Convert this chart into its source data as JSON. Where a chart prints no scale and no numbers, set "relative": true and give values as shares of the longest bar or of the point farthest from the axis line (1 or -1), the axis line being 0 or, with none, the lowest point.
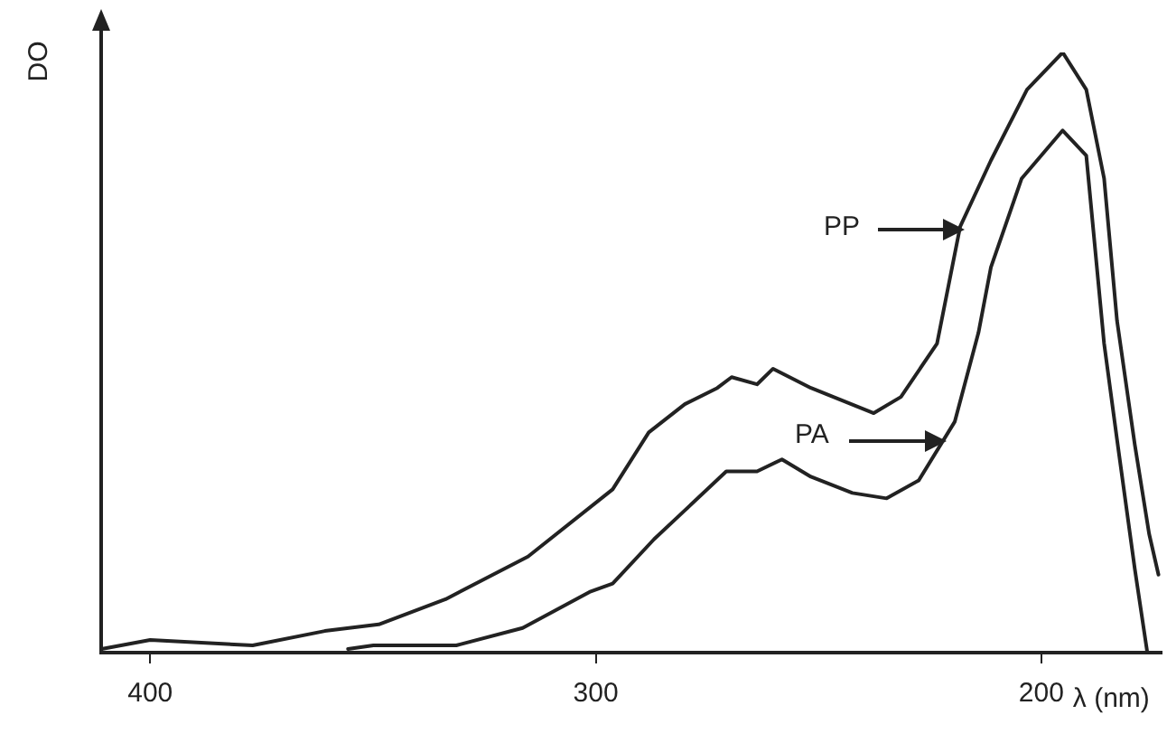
{
  "chart_data": {
    "type": "line",
    "relative": true,
    "ylabel": "DO",
    "xlabel": "λ (nm)",
    "xlim": [
      411,
      173
    ],
    "xticks": [
      400,
      300,
      200
    ],
    "grid": false,
    "legend": false,
    "marker": "none",
    "line_style": "solid",
    "series": [
      {
        "color": "#222222",
        "x": [
          410.9,
          400,
          377.0,
          360.8,
          348.7,
          333.7,
          315.2,
          296.2,
          288.1,
          280.0,
          272.7,
          269.5,
          263.8,
          260.2,
          251.7,
          237.6,
          231.5,
          223.4,
          218.2,
          211.3,
          203.2,
          195.2,
          189.9,
          185.9,
          183.0,
          179.0,
          175.8,
          173.7
        ],
        "values": [
          0.006,
          0.021,
          0.012,
          0.036,
          0.047,
          0.089,
          0.16,
          0.272,
          0.367,
          0.414,
          0.441,
          0.459,
          0.447,
          0.473,
          0.441,
          0.399,
          0.426,
          0.515,
          0.71,
          0.82,
          0.938,
          1,
          0.938,
          0.79,
          0.553,
          0.346,
          0.198,
          0.13
        ]
      },
      {
        "color": "#222222",
        "x": [
          355.6,
          349.9,
          331.3,
          316.4,
          301.4,
          296.2,
          286.9,
          280.0,
          270.7,
          263.8,
          258.2,
          251.7,
          242.4,
          234.7,
          227.5,
          219.4,
          214.1,
          211.3,
          204.4,
          195.2,
          189.9,
          185.9,
          183.0,
          179.0,
          176.2
        ],
        "values": [
          0.006,
          0.012,
          0.012,
          0.041,
          0.101,
          0.115,
          0.189,
          0.237,
          0.302,
          0.302,
          0.322,
          0.293,
          0.266,
          0.257,
          0.287,
          0.385,
          0.533,
          0.642,
          0.79,
          0.87,
          0.828,
          0.515,
          0.355,
          0.139,
          0
        ]
      }
    ],
    "annotations": [
      "PP",
      "PA"
    ]
  }
}
